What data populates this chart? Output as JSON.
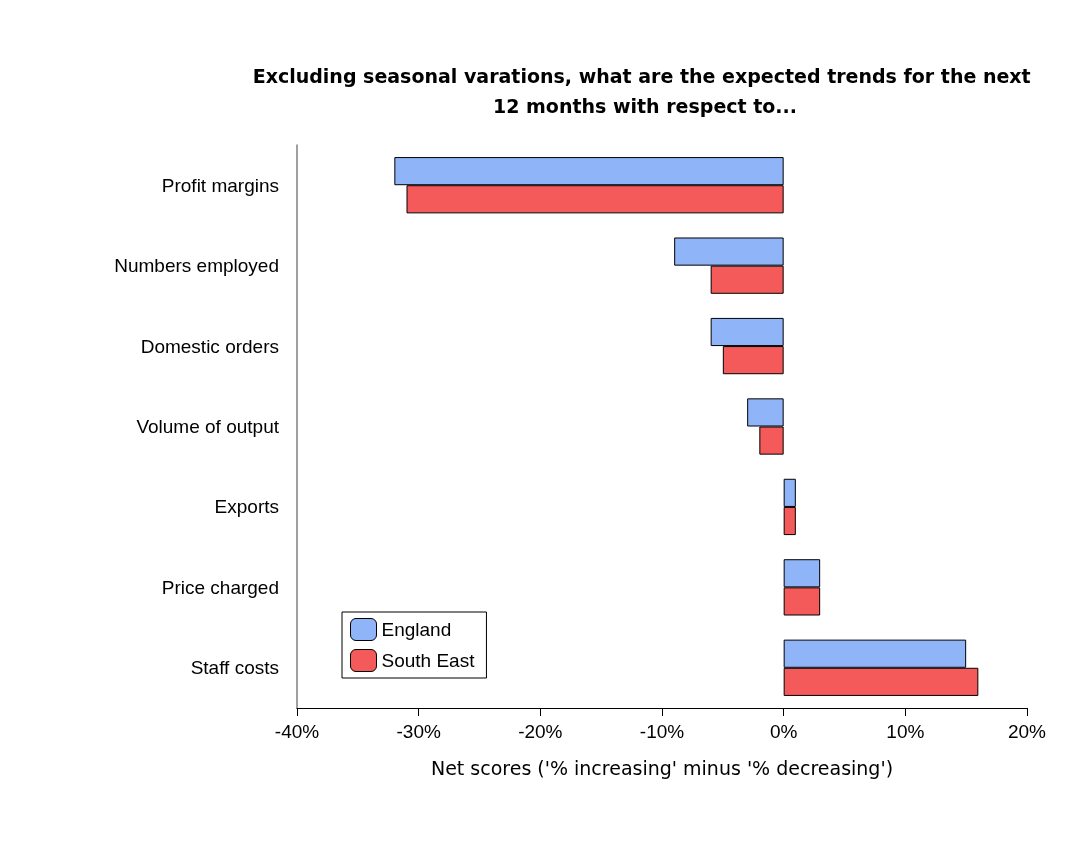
{
  "chart_data": {
    "type": "bar",
    "orientation": "horizontal",
    "title": "Excluding seasonal varations, what are the expected trends for the next 12 months with respect to...",
    "xlabel": "Net scores ('% increasing' minus '% decreasing')",
    "categories": [
      "Profit margins",
      "Numbers employed",
      "Domestic orders",
      "Volume of output",
      "Exports",
      "Price charged",
      "Staff costs"
    ],
    "series": [
      {
        "name": "England",
        "color": "#8fb4f8",
        "values": [
          -32,
          -9,
          -6,
          -3,
          1,
          3,
          15
        ]
      },
      {
        "name": "South East",
        "color": "#f55a5a",
        "values": [
          -31,
          -6,
          -5,
          -2,
          1,
          3,
          16
        ]
      }
    ],
    "xlim": [
      -40,
      20
    ],
    "xticks": [
      {
        "value": -40,
        "label": "-40%"
      },
      {
        "value": -30,
        "label": "-30%"
      },
      {
        "value": -20,
        "label": "-20%"
      },
      {
        "value": -10,
        "label": "-10%"
      },
      {
        "value": 0,
        "label": "0%"
      },
      {
        "value": 10,
        "label": "10%"
      },
      {
        "value": 20,
        "label": "20%"
      }
    ],
    "grid": false,
    "legend": "bottom left"
  }
}
